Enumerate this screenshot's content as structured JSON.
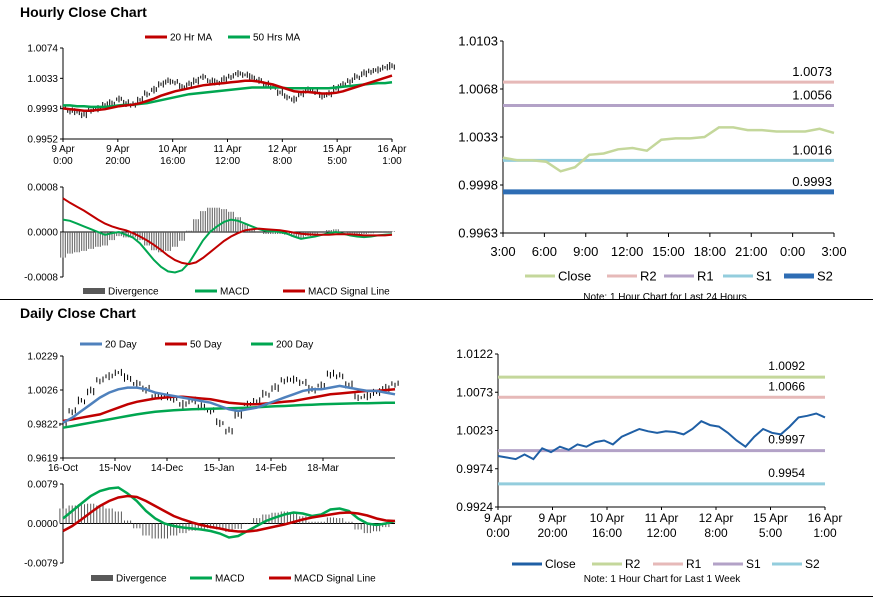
{
  "sections": {
    "hourly_title": "Hourly Close Chart",
    "daily_title": "Daily Close Chart"
  },
  "colors": {
    "ma_short": "#c00000",
    "ma_long": "#00a650",
    "ma_blue": "#4f81bd",
    "close_light": "#c4d79b",
    "close_dark": "#1f5fa5",
    "r2_hourly": "#e6b9b8",
    "r1_hourly": "#b3a2c7",
    "s1": "#93cddd",
    "s2": "#2e6db4",
    "r2_daily": "#c4d79b",
    "r1_daily": "#e6b9b8",
    "s1_daily": "#b3a2c7",
    "s2_daily": "#93cddd",
    "divergence": "#595959"
  },
  "chart_data": [
    {
      "id": "hourly_price",
      "type": "line",
      "legend": [
        "20 Hr MA",
        "50 Hrs MA"
      ],
      "y_ticks": [
        "1.0074",
        "1.0033",
        "0.9993",
        "0.9952"
      ],
      "ylim": [
        0.9952,
        1.0074
      ],
      "x_ticks": [
        [
          "9 Apr",
          "0:00"
        ],
        [
          "9 Apr",
          "20:00"
        ],
        [
          "10 Apr",
          "16:00"
        ],
        [
          "11 Apr",
          "12:00"
        ],
        [
          "12 Apr",
          "8:00"
        ],
        [
          "15 Apr",
          "5:00"
        ],
        [
          "16 Apr",
          "1:00"
        ]
      ],
      "close": [
        0.9995,
        0.999,
        0.9988,
        0.9985,
        0.999,
        0.9993,
        0.9998,
        1.0,
        1.0005,
        1.0,
        0.9998,
        1.0005,
        1.0012,
        1.0018,
        1.0025,
        1.003,
        1.0028,
        1.0022,
        1.0025,
        1.003,
        1.0035,
        1.003,
        1.0028,
        1.0032,
        1.0035,
        1.004,
        1.0038,
        1.0035,
        1.003,
        1.0025,
        1.0022,
        1.0015,
        1.0008,
        1.0005,
        1.0012,
        1.0018,
        1.0015,
        1.001,
        1.0012,
        1.002,
        1.0025,
        1.003,
        1.0035,
        1.004,
        1.0042,
        1.0045,
        1.0048,
        1.005
      ],
      "ma20": [
        0.9993,
        0.9992,
        0.9991,
        0.999,
        0.999,
        0.9991,
        0.9992,
        0.9994,
        0.9996,
        0.9997,
        0.9998,
        1.0,
        1.0003,
        1.0006,
        1.001,
        1.0013,
        1.0016,
        1.0018,
        1.002,
        1.0022,
        1.0024,
        1.0025,
        1.0026,
        1.0027,
        1.0028,
        1.0029,
        1.003,
        1.003,
        1.0029,
        1.0027,
        1.0025,
        1.0022,
        1.0019,
        1.0016,
        1.0015,
        1.0015,
        1.0014,
        1.0013,
        1.0013,
        1.0014,
        1.0016,
        1.0019,
        1.0022,
        1.0025,
        1.0028,
        1.0031,
        1.0034,
        1.0037
      ],
      "ma50": [
        0.9997,
        0.9997,
        0.9996,
        0.9996,
        0.9995,
        0.9995,
        0.9995,
        0.9996,
        0.9997,
        0.9998,
        0.9998,
        0.9999,
        1.0,
        1.0002,
        1.0004,
        1.0006,
        1.0008,
        1.001,
        1.0012,
        1.0013,
        1.0014,
        1.0015,
        1.0016,
        1.0017,
        1.0018,
        1.0019,
        1.002,
        1.0021,
        1.0021,
        1.0021,
        1.0021,
        1.0021,
        1.002,
        1.002,
        1.002,
        1.002,
        1.002,
        1.002,
        1.002,
        1.0021,
        1.0022,
        1.0023,
        1.0024,
        1.0025,
        1.0026,
        1.0027,
        1.0027,
        1.0028
      ]
    },
    {
      "id": "hourly_macd",
      "type": "line",
      "y_ticks": [
        "0.0008",
        "0.0000",
        "-0.0008"
      ],
      "ylim": [
        -0.0008,
        0.0008
      ],
      "legend": [
        "Divergence",
        "MACD",
        "MACD Signal Line"
      ],
      "macd": [
        0.00022,
        0.0002,
        0.00015,
        0.0001,
        5e-05,
        0.0,
        -5e-05,
        -2e-05,
        0.0,
        -5e-05,
        -0.0001,
        -0.0002,
        -0.00035,
        -0.0005,
        -0.00062,
        -0.0007,
        -0.00072,
        -0.00068,
        -0.00055,
        -0.00035,
        -0.00015,
        0.0,
        0.0001,
        0.00018,
        0.00022,
        0.0002,
        0.00015,
        0.0001,
        5e-05,
        2e-05,
        1e-05,
        0.0,
        -3e-05,
        -8e-05,
        -0.00012,
        -0.0001,
        -8e-05,
        -5e-05,
        -2e-05,
        0.0,
        -3e-05,
        -6e-05,
        -8e-05,
        -9e-05,
        -8e-05,
        -6e-05,
        -5e-05,
        -4e-05
      ],
      "signal": [
        0.0006,
        0.00052,
        0.00045,
        0.00038,
        0.0003,
        0.00022,
        0.00015,
        0.0001,
        6e-05,
        3e-05,
        -2e-05,
        -8e-05,
        -0.00015,
        -0.00023,
        -0.00032,
        -0.00042,
        -0.0005,
        -0.00055,
        -0.00057,
        -0.00054,
        -0.00046,
        -0.00036,
        -0.00026,
        -0.00016,
        -8e-05,
        -2e-05,
        3e-05,
        5e-05,
        6e-05,
        5e-05,
        4e-05,
        3e-05,
        1e-05,
        -1e-05,
        -3e-05,
        -4e-05,
        -5e-05,
        -5e-05,
        -5e-05,
        -4e-05,
        -4e-05,
        -4e-05,
        -5e-05,
        -6e-05,
        -6e-05,
        -6e-05,
        -6e-05,
        -5e-05
      ]
    },
    {
      "id": "hourly_levels",
      "type": "line",
      "y_ticks": [
        "1.0103",
        "1.0068",
        "1.0033",
        "0.9998",
        "0.9963"
      ],
      "ylim": [
        0.9963,
        1.0103
      ],
      "x_ticks": [
        "3:00",
        "6:00",
        "9:00",
        "12:00",
        "15:00",
        "18:00",
        "21:00",
        "0:00",
        "3:00"
      ],
      "close": [
        1.0018,
        1.0016,
        1.0016,
        1.0015,
        1.0008,
        1.0011,
        1.002,
        1.0021,
        1.0024,
        1.0025,
        1.0023,
        1.0031,
        1.0032,
        1.0032,
        1.0033,
        1.004,
        1.004,
        1.0038,
        1.0038,
        1.0037,
        1.0037,
        1.0037,
        1.0039,
        1.0036
      ],
      "levels": [
        {
          "name": "R2",
          "value": 1.0073,
          "label": "1.0073"
        },
        {
          "name": "R1",
          "value": 1.0056,
          "label": "1.0056"
        },
        {
          "name": "S1",
          "value": 1.0016,
          "label": "1.0016"
        },
        {
          "name": "S2",
          "value": 0.9993,
          "label": "0.9993"
        }
      ],
      "legend": [
        "Close",
        "R2",
        "R1",
        "S1",
        "S2"
      ],
      "note": "Note: 1 Hour Chart for Last 24 Hours"
    },
    {
      "id": "daily_price",
      "type": "line",
      "legend": [
        "20 Day",
        "50 Day",
        "200 Day"
      ],
      "y_ticks": [
        "1.0229",
        "1.0026",
        "0.9822",
        "0.9619"
      ],
      "ylim": [
        0.9619,
        1.0229
      ],
      "x_ticks": [
        "16-Oct",
        "15-Nov",
        "14-Dec",
        "15-Jan",
        "14-Feb",
        "18-Mar"
      ],
      "close": [
        0.982,
        0.99,
        0.996,
        1.002,
        1.008,
        1.011,
        1.013,
        1.01,
        1.006,
        1.003,
        0.999,
        0.999,
        0.997,
        0.994,
        0.996,
        0.993,
        0.99,
        0.983,
        0.978,
        0.988,
        0.994,
        0.996,
        1.0,
        1.004,
        1.008,
        1.009,
        1.007,
        1.003,
        1.005,
        1.012,
        1.011,
        1.006,
        0.998,
        0.999,
        1.001,
        1.004,
        1.006
      ],
      "ma20": [
        0.983,
        0.986,
        0.99,
        0.994,
        0.998,
        1.001,
        1.003,
        1.004,
        1.004,
        1.003,
        1.001,
        1.0,
        0.999,
        0.998,
        0.997,
        0.996,
        0.995,
        0.993,
        0.991,
        0.99,
        0.991,
        0.992,
        0.994,
        0.996,
        0.998,
        1.0,
        1.002,
        1.003,
        1.003,
        1.004,
        1.005,
        1.004,
        1.003,
        1.002,
        1.002,
        1.001,
        1.0
      ],
      "ma50": [
        0.984,
        0.985,
        0.986,
        0.987,
        0.988,
        0.99,
        0.992,
        0.994,
        0.9955,
        0.9965,
        0.9975,
        0.998,
        0.9985,
        0.9985,
        0.998,
        0.9975,
        0.997,
        0.996,
        0.995,
        0.9945,
        0.994,
        0.994,
        0.9945,
        0.995,
        0.9955,
        0.996,
        0.997,
        0.998,
        0.999,
        1.0,
        1.0005,
        1.001,
        1.0015,
        1.002,
        1.002,
        1.0025,
        1.003
      ],
      "ma200": [
        0.98,
        0.981,
        0.982,
        0.983,
        0.984,
        0.985,
        0.986,
        0.987,
        0.988,
        0.9888,
        0.9895,
        0.99,
        0.9905,
        0.9908,
        0.991,
        0.9912,
        0.9914,
        0.9915,
        0.9916,
        0.9918,
        0.992,
        0.9922,
        0.9925,
        0.9928,
        0.993,
        0.9933,
        0.9936,
        0.9938,
        0.994,
        0.9942,
        0.9944,
        0.9945,
        0.9946,
        0.9947,
        0.9948,
        0.9949,
        0.995
      ]
    },
    {
      "id": "daily_macd",
      "type": "line",
      "y_ticks": [
        "0.0079",
        "0.0000",
        "-0.0079"
      ],
      "ylim": [
        -0.0079,
        0.0079
      ],
      "legend": [
        "Divergence",
        "MACD",
        "MACD Signal Line"
      ],
      "macd": [
        0.001,
        0.0025,
        0.004,
        0.0055,
        0.0065,
        0.007,
        0.0072,
        0.006,
        0.0045,
        0.0025,
        0.001,
        0.0,
        -0.0005,
        -0.0008,
        -0.001,
        -0.0012,
        -0.0015,
        -0.002,
        -0.0028,
        -0.0025,
        -0.0015,
        -0.0005,
        0.0005,
        0.0012,
        0.0018,
        0.0022,
        0.002,
        0.0015,
        0.0018,
        0.0028,
        0.003,
        0.0025,
        0.001,
        0.0,
        -0.0003,
        0.0,
        0.0005
      ],
      "signal": [
        -0.0015,
        -0.0005,
        0.0008,
        0.0022,
        0.0035,
        0.0045,
        0.0052,
        0.0055,
        0.0053,
        0.0045,
        0.0035,
        0.0025,
        0.0015,
        0.0008,
        0.0002,
        -0.0003,
        -0.0007,
        -0.001,
        -0.0014,
        -0.0016,
        -0.0016,
        -0.0014,
        -0.001,
        -0.0006,
        -0.0002,
        0.0003,
        0.0008,
        0.0012,
        0.0015,
        0.0018,
        0.0021,
        0.0022,
        0.002,
        0.0016,
        0.001,
        0.0006,
        0.0005
      ]
    },
    {
      "id": "daily_levels",
      "type": "line",
      "y_ticks": [
        "1.0122",
        "1.0073",
        "1.0023",
        "0.9974",
        "0.9924"
      ],
      "ylim": [
        0.9924,
        1.0122
      ],
      "x_ticks": [
        [
          "9 Apr",
          "0:00"
        ],
        [
          "9 Apr",
          "20:00"
        ],
        [
          "10 Apr",
          "16:00"
        ],
        [
          "11 Apr",
          "12:00"
        ],
        [
          "12 Apr",
          "8:00"
        ],
        [
          "15 Apr",
          "5:00"
        ],
        [
          "16 Apr",
          "1:00"
        ]
      ],
      "close": [
        0.999,
        0.9988,
        0.9986,
        0.9992,
        0.9986,
        1.0,
        0.9995,
        1.0002,
        0.9998,
        1.0005,
        1.0002,
        1.0008,
        1.001,
        1.0005,
        1.0015,
        1.002,
        1.0025,
        1.0022,
        1.002,
        1.0022,
        1.0021,
        1.0018,
        1.0025,
        1.0035,
        1.003,
        1.0028,
        1.002,
        1.001,
        1.0002,
        1.0015,
        1.0025,
        1.002,
        1.0018,
        1.0028,
        1.004,
        1.0042,
        1.0045,
        1.004
      ],
      "levels": [
        {
          "name": "R2",
          "value": 1.0092,
          "label": "1.0092"
        },
        {
          "name": "R1",
          "value": 1.0066,
          "label": "1.0066"
        },
        {
          "name": "S1",
          "value": 0.9997,
          "label": "0.9997"
        },
        {
          "name": "S2",
          "value": 0.9954,
          "label": "0.9954"
        }
      ],
      "legend": [
        "Close",
        "R2",
        "R1",
        "S1",
        "S2"
      ],
      "note": "Note: 1 Hour Chart for Last 1 Week"
    }
  ]
}
